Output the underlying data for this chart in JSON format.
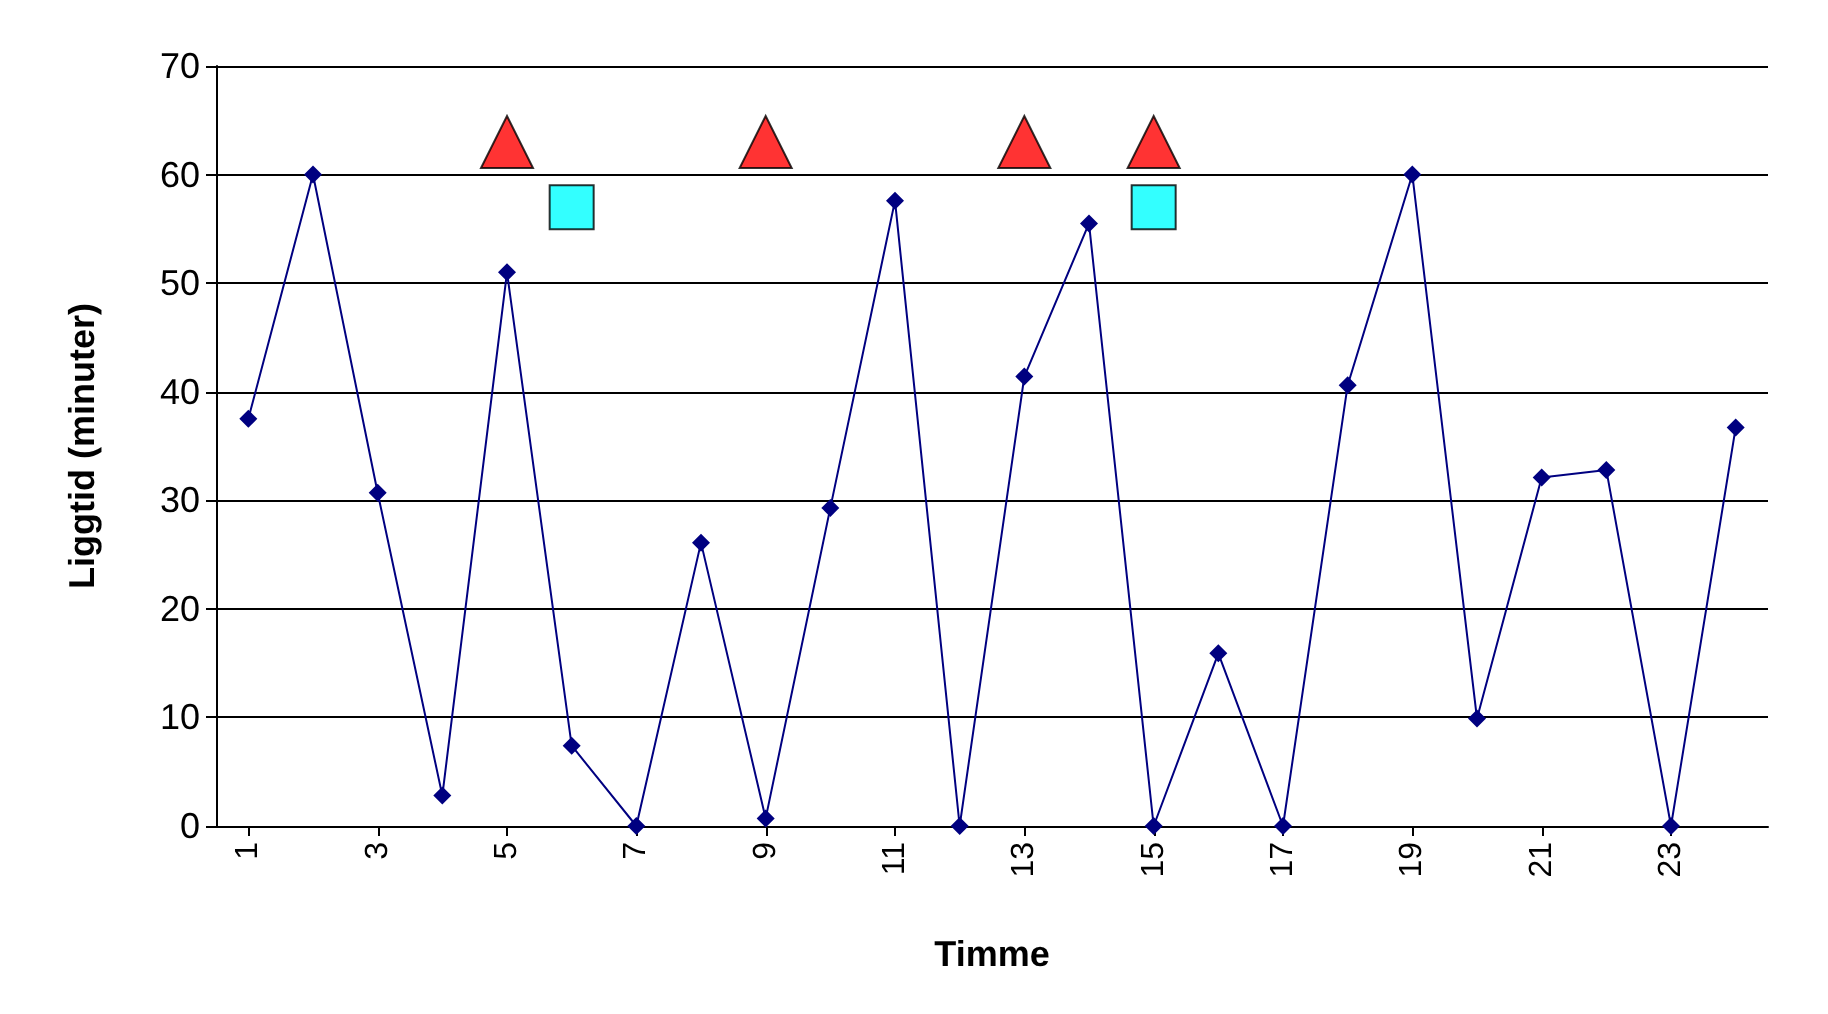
{
  "chart_data": {
    "type": "line",
    "xlabel": "Timme",
    "ylabel": "Liggtid (minuter)",
    "xlim": [
      0.5,
      24.5
    ],
    "xticks": [
      1,
      3,
      5,
      7,
      9,
      11,
      13,
      15,
      17,
      19,
      21,
      23
    ],
    "ylim": [
      0,
      70
    ],
    "yticks": [
      0,
      10,
      20,
      30,
      40,
      50,
      60,
      70
    ],
    "grid": "y",
    "series": [
      {
        "color": "#000080",
        "marker": "diamond",
        "x": [
          1,
          2,
          3,
          4,
          5,
          6,
          7,
          8,
          9,
          10,
          11,
          12,
          13,
          14,
          15,
          16,
          17,
          18,
          19,
          20,
          21,
          22,
          23,
          24
        ],
        "values": [
          37.5,
          60,
          30.7,
          2.8,
          51,
          7.4,
          0,
          26.1,
          0.7,
          29.3,
          57.6,
          0,
          41.4,
          55.5,
          0,
          15.9,
          0,
          40.6,
          60,
          9.9,
          32.1,
          32.8,
          0,
          36.7
        ]
      },
      {
        "type": "scatter",
        "color": "#ff0000",
        "marker": "triangle",
        "x": [
          5,
          9,
          13,
          15
        ],
        "values": [
          63,
          63,
          63,
          63
        ]
      },
      {
        "type": "scatter",
        "color": "#00ffff",
        "marker": "square",
        "x": [
          6,
          15
        ],
        "values": [
          57,
          57
        ]
      }
    ]
  }
}
